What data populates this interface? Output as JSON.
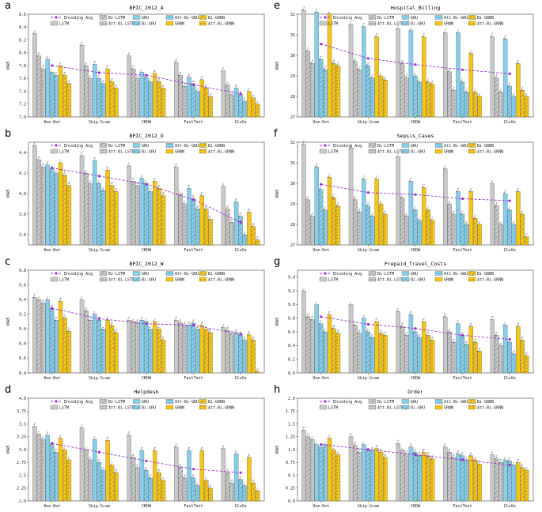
{
  "series_names": [
    "LSTM",
    "Bi-LSTM",
    "Att-Bi-LSTM",
    "GRU",
    "Bi-GRU",
    "Att-Bi-GRU",
    "GRNN",
    "Bi-GRNN",
    "Att-Bi-GRNN"
  ],
  "avg_label": "Encoding_Avg",
  "colors": {
    "lstm": "#c8c8c8",
    "gru": "#87ceeb",
    "grnn": "#f5c518",
    "avg": "#9b30d0",
    "edge": "#555555"
  },
  "chart_data": [
    {
      "type": "bar",
      "letter": "a",
      "title": "BPIC_2012_A",
      "ylabel": "MAE",
      "categories": [
        "One-Hot",
        "Skip-Gram",
        "CBOW",
        "FastText",
        "GloVe"
      ],
      "ylim": [
        7.0,
        8.6
      ],
      "yticks": [
        7.0,
        7.2,
        7.4,
        7.6,
        7.8,
        8.0,
        8.2,
        8.4,
        8.6
      ],
      "values": [
        [
          8.3,
          7.95,
          7.75,
          7.9,
          7.7,
          7.65,
          7.8,
          7.65,
          7.52
        ],
        [
          8.12,
          7.8,
          7.6,
          7.82,
          7.6,
          7.52,
          7.75,
          7.55,
          7.45
        ],
        [
          7.95,
          7.75,
          7.6,
          7.7,
          7.62,
          7.55,
          7.68,
          7.55,
          7.45
        ],
        [
          7.85,
          7.65,
          7.48,
          7.62,
          7.52,
          7.4,
          7.58,
          7.45,
          7.32
        ],
        [
          7.72,
          7.5,
          7.35,
          7.45,
          7.35,
          7.25,
          7.4,
          7.3,
          7.2
        ]
      ],
      "avg": [
        7.8,
        7.69,
        7.65,
        7.5,
        7.36
      ]
    },
    {
      "type": "bar",
      "letter": "b",
      "title": "BPIC_2012_O",
      "ylabel": "MAE",
      "categories": [
        "One-Hot",
        "Skip-Gram",
        "CBOW",
        "FastText",
        "GloVe"
      ],
      "ylim": [
        3.5,
        4.5
      ],
      "yticks": [
        3.6,
        3.8,
        4.0,
        4.2,
        4.4
      ],
      "values": [
        [
          4.47,
          4.33,
          4.26,
          4.28,
          4.24,
          4.2,
          4.3,
          4.18,
          4.08
        ],
        [
          4.37,
          4.2,
          4.1,
          4.32,
          4.1,
          4.03,
          4.23,
          4.08,
          4.02
        ],
        [
          4.27,
          4.12,
          4.08,
          4.15,
          4.1,
          4.02,
          4.12,
          4.05,
          3.98
        ],
        [
          4.26,
          4.0,
          3.9,
          4.05,
          3.95,
          3.85,
          3.98,
          3.85,
          3.75
        ],
        [
          4.07,
          3.85,
          3.72,
          3.92,
          3.78,
          3.6,
          3.82,
          3.68,
          3.55
        ]
      ],
      "avg": [
        4.25,
        4.17,
        4.09,
        3.94,
        3.72
      ]
    },
    {
      "type": "bar",
      "letter": "c",
      "title": "BPIC_2012_W",
      "ylabel": "MAE",
      "categories": [
        "One-Hot",
        "Skip-Gram",
        "CBOW",
        "FastText",
        "GloVe"
      ],
      "ylim": [
        8.4,
        9.8
      ],
      "yticks": [
        8.4,
        8.6,
        8.8,
        9.0,
        9.2,
        9.4,
        9.6,
        9.8
      ],
      "values": [
        [
          9.43,
          9.4,
          9.35,
          9.4,
          9.28,
          9.12,
          9.38,
          9.15,
          8.97
        ],
        [
          9.4,
          9.25,
          9.12,
          9.2,
          9.12,
          9.0,
          9.12,
          9.05,
          8.95
        ],
        [
          9.12,
          9.1,
          9.08,
          9.12,
          9.1,
          9.0,
          9.1,
          9.0,
          8.85
        ],
        [
          9.12,
          9.08,
          9.05,
          9.05,
          9.08,
          9.0,
          9.05,
          9.0,
          8.95
        ],
        [
          9.02,
          8.98,
          8.93,
          8.95,
          8.92,
          8.85,
          8.92,
          8.85,
          8.42
        ]
      ],
      "avg": [
        9.28,
        9.14,
        9.07,
        9.05,
        8.93
      ]
    },
    {
      "type": "bar",
      "letter": "d",
      "title": "Helpdesk",
      "ylabel": "MAE",
      "categories": [
        "One-Hot",
        "Skip-Gram",
        "CBOW",
        "FastText",
        "GloVe"
      ],
      "ylim": [
        2.0,
        4.0
      ],
      "yticks": [
        2.0,
        2.25,
        2.5,
        2.75,
        3.0,
        3.25,
        3.5,
        3.75,
        4.0
      ],
      "values": [
        [
          3.45,
          3.3,
          3.2,
          3.28,
          3.1,
          2.95,
          3.22,
          3.0,
          2.8
        ],
        [
          3.42,
          3.0,
          2.8,
          3.2,
          2.75,
          2.6,
          3.18,
          2.7,
          2.55
        ],
        [
          3.28,
          2.85,
          2.65,
          2.98,
          2.6,
          2.45,
          2.98,
          2.55,
          2.4
        ],
        [
          3.05,
          2.65,
          2.45,
          2.98,
          2.45,
          2.3,
          2.98,
          2.4,
          2.25
        ],
        [
          3.02,
          2.55,
          2.35,
          2.92,
          2.42,
          2.3,
          2.85,
          2.35,
          2.2
        ]
      ],
      "avg": [
        3.12,
        2.95,
        2.78,
        2.62,
        2.55
      ]
    },
    {
      "type": "bar",
      "letter": "e",
      "title": "Hospital_Billing",
      "ylabel": "MAE",
      "categories": [
        "One-Hot",
        "Skip-Gram",
        "CBOW",
        "FastText",
        "GloVe"
      ],
      "ylim": [
        27,
        32
      ],
      "yticks": [
        27,
        28,
        29,
        30,
        31,
        32
      ],
      "values": [
        [
          32.2,
          30.2,
          29.6,
          32.1,
          29.8,
          29.3,
          32.0,
          29.6,
          29.5
        ],
        [
          31.5,
          29.7,
          29.3,
          31.4,
          29.5,
          28.9,
          30.9,
          29.0,
          28.8
        ],
        [
          31.3,
          29.6,
          28.9,
          31.2,
          29.0,
          28.7,
          30.9,
          28.7,
          28.6
        ],
        [
          31.1,
          29.2,
          28.3,
          31.1,
          28.7,
          28.2,
          30.1,
          28.2,
          28.0
        ],
        [
          30.9,
          28.9,
          28.2,
          30.8,
          28.5,
          28.0,
          29.6,
          28.3,
          28.0
        ]
      ],
      "avg": [
        30.55,
        29.85,
        29.55,
        29.3,
        29.1
      ]
    },
    {
      "type": "bar",
      "letter": "f",
      "title": "Sepsis_Cases",
      "ylabel": "MAE",
      "categories": [
        "One-Hot",
        "Skip-Gram",
        "CBOW",
        "FastText",
        "GloVe"
      ],
      "ylim": [
        27,
        32
      ],
      "yticks": [
        27,
        28,
        29,
        30,
        31,
        32
      ],
      "values": [
        [
          31.9,
          29.2,
          28.4,
          30.8,
          29.7,
          28.7,
          30.3,
          29.3,
          28.9
        ],
        [
          31.7,
          29.2,
          28.6,
          30.2,
          28.9,
          28.4,
          30.2,
          29.0,
          28.5
        ],
        [
          31.3,
          29.3,
          28.4,
          30.1,
          28.7,
          28.2,
          29.8,
          28.7,
          28.2
        ],
        [
          30.7,
          29.0,
          28.5,
          29.6,
          28.5,
          28.0,
          29.6,
          28.3,
          28.0
        ],
        [
          30.0,
          28.9,
          28.0,
          29.5,
          28.7,
          28.0,
          29.6,
          28.5,
          27.4
        ]
      ],
      "avg": [
        29.95,
        29.55,
        29.45,
        29.25,
        29.15
      ]
    },
    {
      "type": "bar",
      "letter": "g",
      "title": "Prepaid_Travel_Costs",
      "ylabel": "MAE",
      "categories": [
        "One-Hot",
        "Skip-Gram",
        "CBOW",
        "FastText",
        "GloVe"
      ],
      "ylim": [
        8.0,
        9.5
      ],
      "yticks": [
        8.0,
        8.2,
        8.4,
        8.6,
        8.8,
        9.0,
        9.2,
        9.4
      ],
      "values": [
        [
          9.2,
          8.82,
          8.78,
          9.0,
          8.72,
          8.6,
          8.85,
          8.65,
          8.58
        ],
        [
          9.0,
          8.7,
          8.58,
          8.8,
          8.6,
          8.52,
          8.75,
          8.58,
          8.55
        ],
        [
          8.9,
          8.68,
          8.55,
          8.85,
          8.6,
          8.52,
          8.75,
          8.55,
          8.48
        ],
        [
          8.82,
          8.6,
          8.45,
          8.72,
          8.55,
          8.42,
          8.68,
          8.45,
          8.32
        ],
        [
          8.78,
          8.55,
          8.4,
          8.7,
          8.45,
          8.28,
          8.68,
          8.48,
          8.25
        ]
      ],
      "avg": [
        8.82,
        8.71,
        8.65,
        8.55,
        8.49
      ]
    },
    {
      "type": "bar",
      "letter": "h",
      "title": "Order",
      "ylabel": "MAE",
      "categories": [
        "One-Hot",
        "Skip-Gram",
        "CBOW",
        "FastText",
        "GloVe"
      ],
      "ylim": [
        0.0,
        2.0
      ],
      "yticks": [
        0.0,
        0.25,
        0.5,
        0.75,
        1.0,
        1.25,
        1.5,
        1.75,
        2.0
      ],
      "values": [
        [
          1.38,
          1.25,
          1.2,
          1.1,
          1.05,
          1.1,
          1.22,
          1.0,
          0.9
        ],
        [
          1.25,
          1.08,
          0.95,
          1.1,
          1.0,
          0.98,
          1.02,
          0.95,
          0.85
        ],
        [
          1.12,
          1.0,
          0.92,
          1.05,
          0.95,
          0.88,
          0.95,
          0.88,
          0.82
        ],
        [
          1.05,
          0.95,
          0.85,
          0.92,
          0.88,
          0.8,
          0.88,
          0.8,
          0.72
        ],
        [
          0.9,
          0.82,
          0.75,
          0.8,
          0.78,
          0.7,
          0.75,
          0.65,
          0.6
        ]
      ],
      "avg": [
        1.1,
        1.0,
        0.9,
        0.8,
        0.7
      ]
    }
  ]
}
